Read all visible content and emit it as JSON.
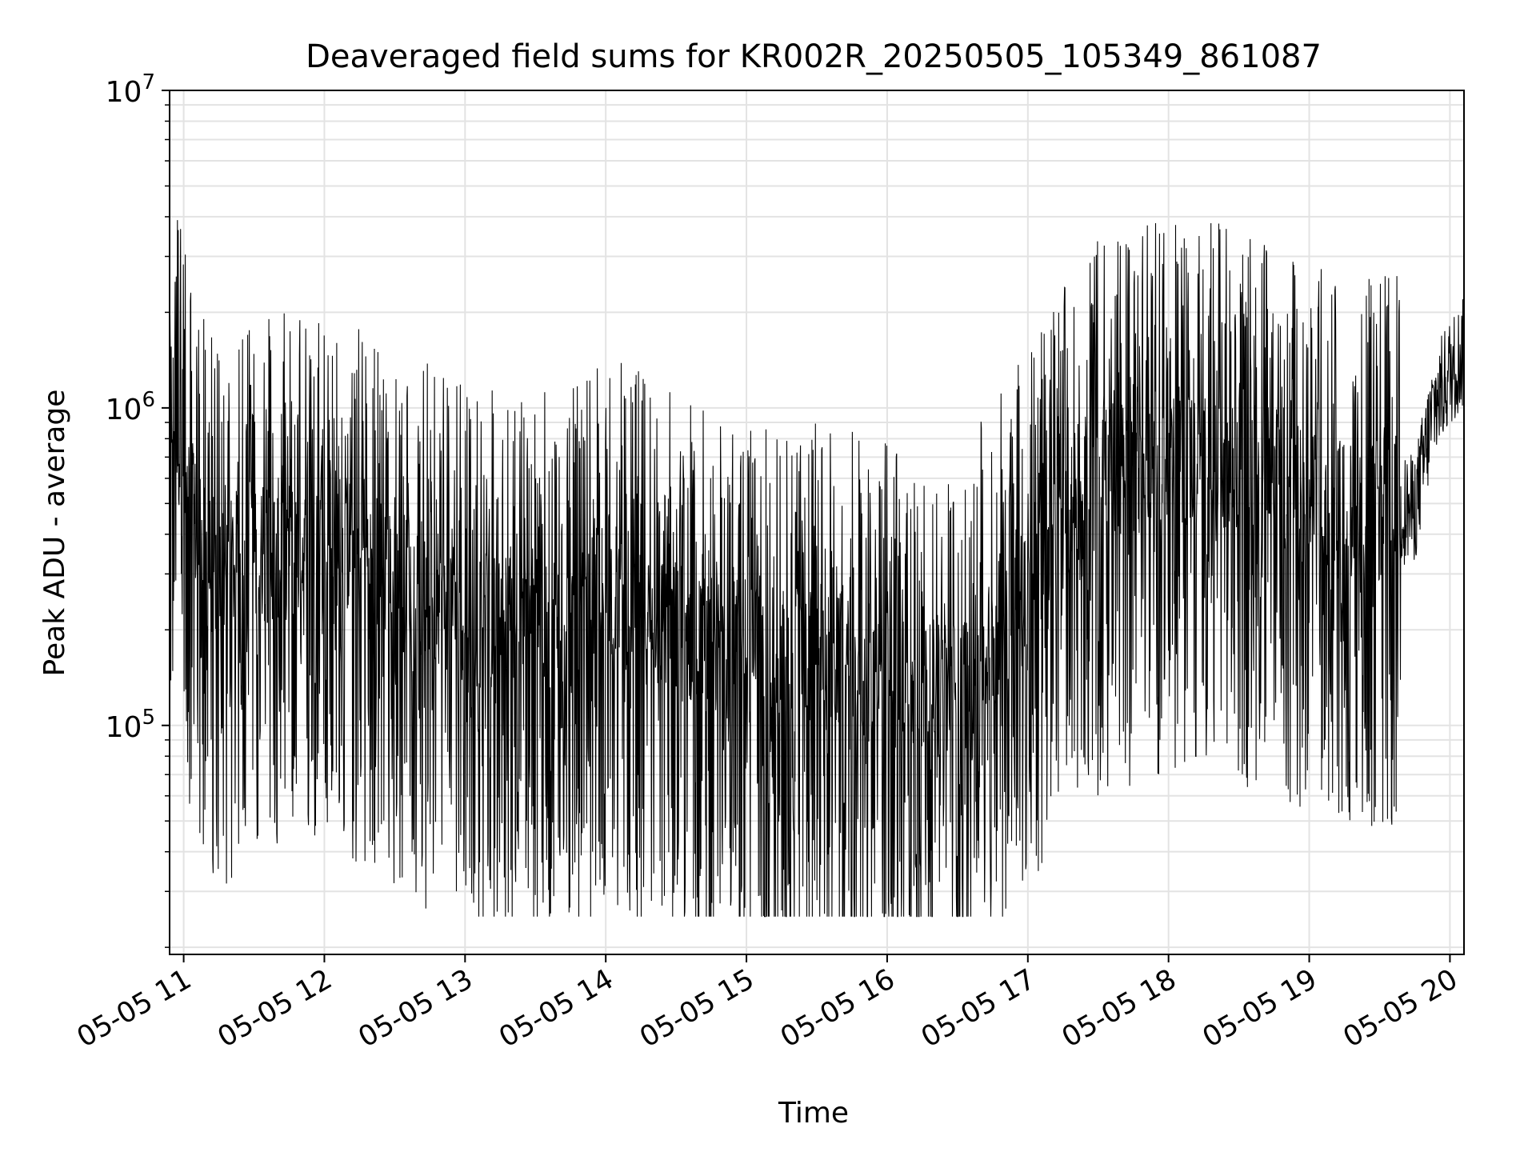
{
  "chart_data": {
    "type": "line",
    "title": "Deaveraged field sums for KR002R_20250505_105349_861087",
    "xlabel": "Time",
    "ylabel": "Peak ADU - average",
    "yscale": "log",
    "ylim": [
      19000,
      10000000
    ],
    "xlim": [
      "2025-05-05 10:54",
      "2025-05-05 20:06"
    ],
    "grid": true,
    "line_color": "#000000",
    "x_ticks": [
      {
        "t": "2025-05-05 11:00",
        "label": "05-05 11"
      },
      {
        "t": "2025-05-05 12:00",
        "label": "05-05 12"
      },
      {
        "t": "2025-05-05 13:00",
        "label": "05-05 13"
      },
      {
        "t": "2025-05-05 14:00",
        "label": "05-05 14"
      },
      {
        "t": "2025-05-05 15:00",
        "label": "05-05 15"
      },
      {
        "t": "2025-05-05 16:00",
        "label": "05-05 16"
      },
      {
        "t": "2025-05-05 17:00",
        "label": "05-05 17"
      },
      {
        "t": "2025-05-05 18:00",
        "label": "05-05 18"
      },
      {
        "t": "2025-05-05 19:00",
        "label": "05-05 19"
      },
      {
        "t": "2025-05-05 20:00",
        "label": "05-05 20"
      }
    ],
    "y_ticks": [
      {
        "value": 100000,
        "base": "10",
        "exp": "5"
      },
      {
        "value": 1000000,
        "base": "10",
        "exp": "6"
      },
      {
        "value": 10000000,
        "base": "10",
        "exp": "7"
      }
    ],
    "series": [
      {
        "x": [
          "2025-05-05 10:54",
          "2025-05-05 11:00",
          "2025-05-05 11:08",
          "2025-05-05 11:15",
          "2025-05-05 11:20",
          "2025-05-05 11:30",
          "2025-05-05 11:40",
          "2025-05-05 11:50",
          "2025-05-05 12:00",
          "2025-05-05 12:10",
          "2025-05-05 12:20",
          "2025-05-05 12:35",
          "2025-05-05 12:50",
          "2025-05-05 13:05",
          "2025-05-05 13:20",
          "2025-05-05 13:35",
          "2025-05-05 13:50",
          "2025-05-05 14:00",
          "2025-05-05 14:15",
          "2025-05-05 14:30",
          "2025-05-05 14:45",
          "2025-05-05 15:00",
          "2025-05-05 15:15",
          "2025-05-05 15:30",
          "2025-05-05 15:45",
          "2025-05-05 16:00",
          "2025-05-05 16:15",
          "2025-05-05 16:30",
          "2025-05-05 16:45",
          "2025-05-05 17:00",
          "2025-05-05 17:15",
          "2025-05-05 17:30",
          "2025-05-05 17:45",
          "2025-05-05 18:00",
          "2025-05-05 18:15",
          "2025-05-05 18:30",
          "2025-05-05 18:45",
          "2025-05-05 19:00",
          "2025-05-05 19:15",
          "2025-05-05 19:30",
          "2025-05-05 19:45",
          "2025-05-05 19:53",
          "2025-05-05 20:00",
          "2025-05-05 20:06"
        ],
        "y": [
          1200000,
          600000,
          350000,
          300000,
          320000,
          330000,
          360000,
          350000,
          420000,
          370000,
          330000,
          280000,
          250000,
          220000,
          200000,
          200000,
          210000,
          280000,
          230000,
          200000,
          180000,
          170000,
          160000,
          160000,
          150000,
          140000,
          130000,
          130000,
          180000,
          300000,
          450000,
          600000,
          650000,
          700000,
          700000,
          650000,
          600000,
          500000,
          480000,
          470000,
          480000,
          1000000,
          1300000,
          1500000
        ]
      }
    ]
  }
}
